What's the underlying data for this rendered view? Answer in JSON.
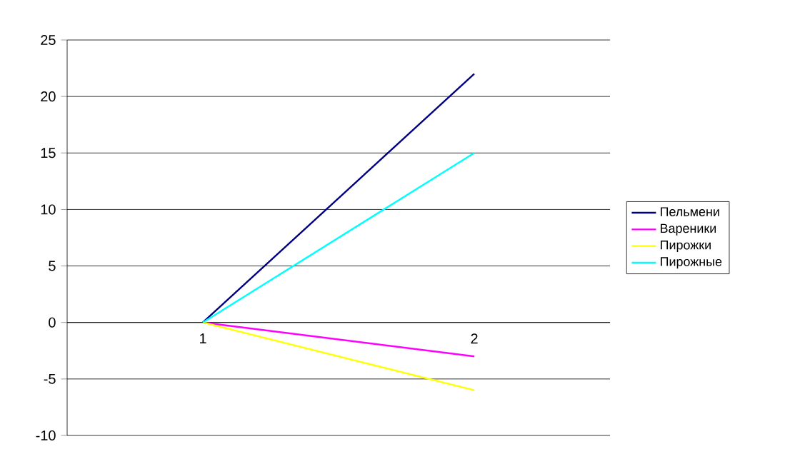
{
  "chart_data": {
    "type": "line",
    "categories": [
      "1",
      "2"
    ],
    "series": [
      {
        "name": "Пельмени",
        "color": "#000080",
        "values": [
          0,
          22
        ]
      },
      {
        "name": "Вареники",
        "color": "#ff00ff",
        "values": [
          0,
          -3
        ]
      },
      {
        "name": "Пирожки",
        "color": "#ffff00",
        "values": [
          0,
          -6
        ]
      },
      {
        "name": "Пирожные",
        "color": "#00ffff",
        "values": [
          0,
          15
        ]
      }
    ],
    "ylim": [
      -10,
      25
    ],
    "yticks": [
      -10,
      -5,
      0,
      5,
      10,
      15,
      20,
      25
    ],
    "grid": "y",
    "legend": "right",
    "marker": "none",
    "line_style": "solid"
  }
}
